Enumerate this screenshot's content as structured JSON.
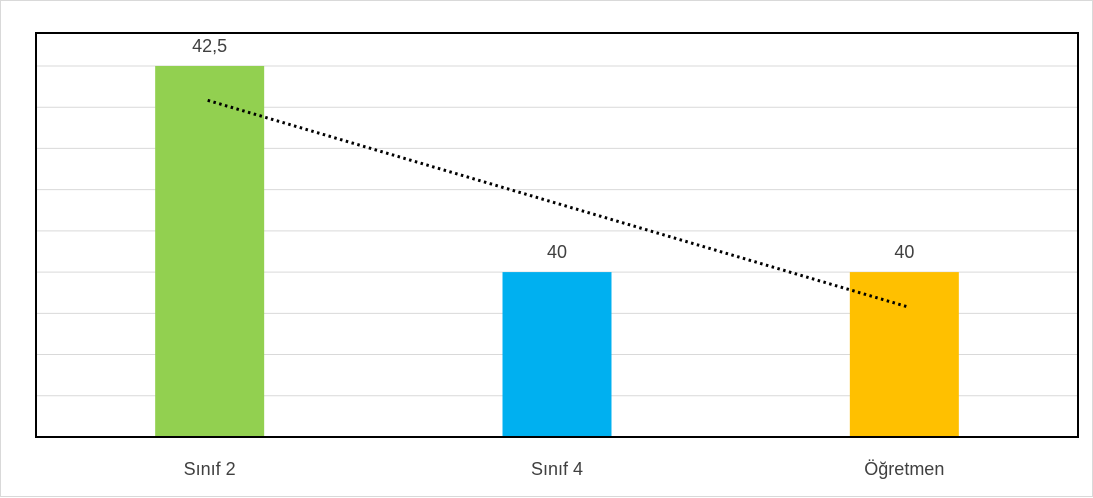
{
  "chart_data": {
    "type": "bar",
    "title": "",
    "xlabel": "",
    "ylabel": "",
    "categories": [
      "Sınıf 2",
      "Sınıf 4",
      "Öğretmen"
    ],
    "values": [
      42.5,
      40,
      40
    ],
    "value_labels": [
      "42,5",
      "40",
      "40"
    ],
    "colors": [
      "#92d050",
      "#00b0f0",
      "#ffc000"
    ],
    "ylim": [
      38,
      42.9
    ],
    "grid": true,
    "trendline": {
      "type": "linear",
      "style": "dotted",
      "color": "#000000"
    }
  }
}
